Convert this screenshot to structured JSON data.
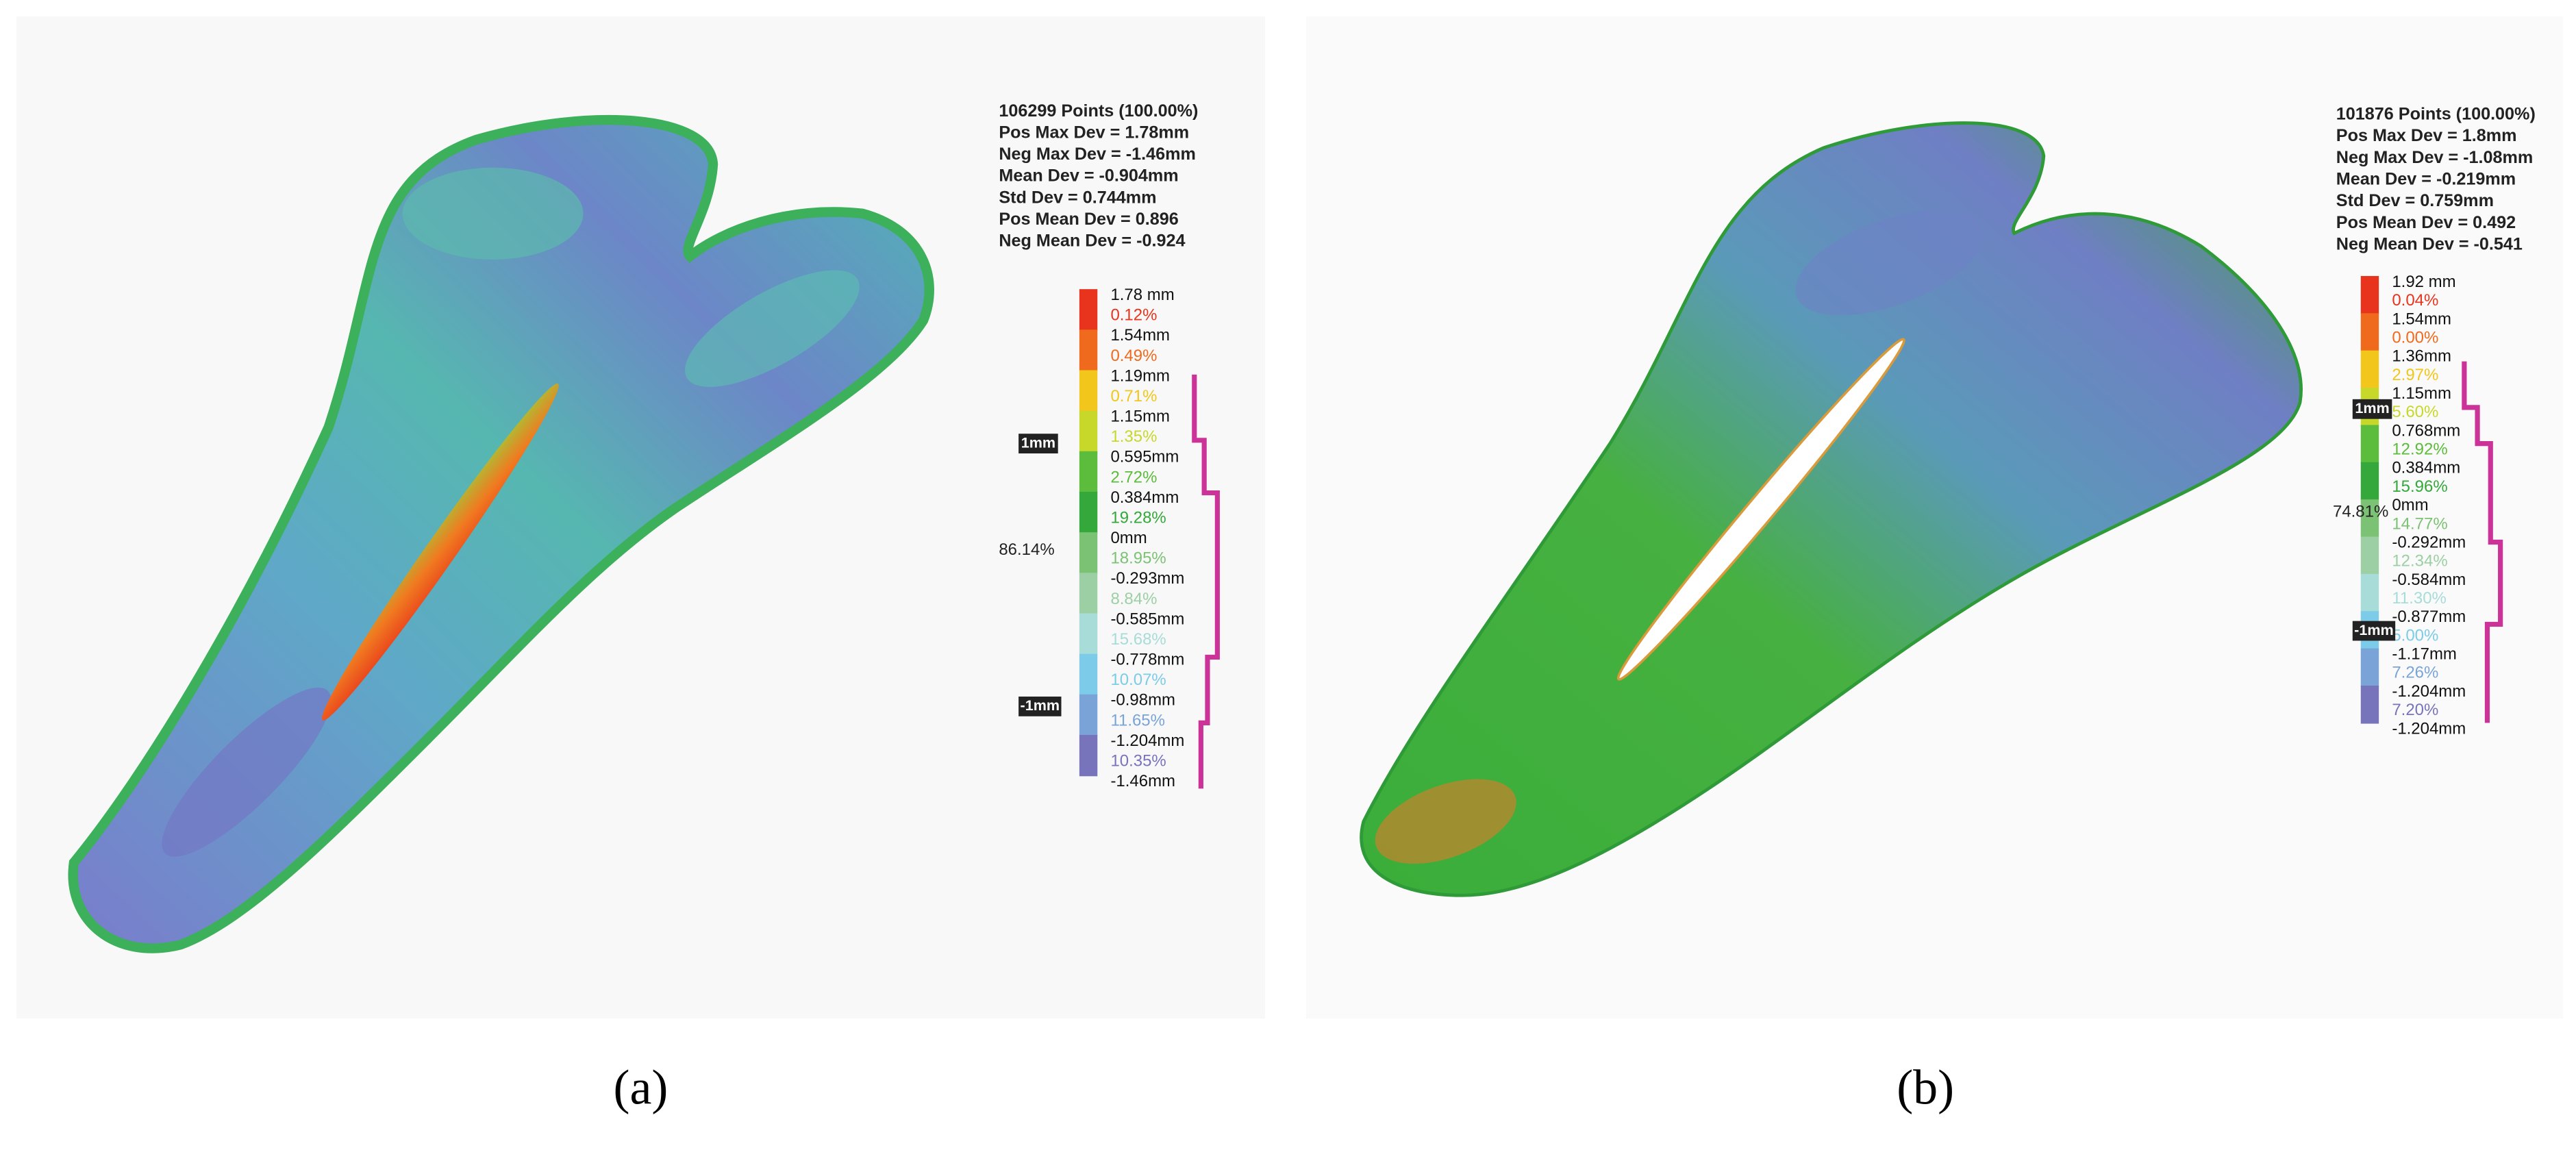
{
  "panels": [
    {
      "stats": [
        "106299 Points (100.00%)",
        "Pos Max Dev = 1.78mm",
        "Neg Max Dev = -1.46mm",
        "Mean Dev = -0.904mm",
        "Std Dev = 0.744mm",
        "Pos Mean Dev = 0.896",
        "Neg Mean Dev = -0.924"
      ],
      "scale": {
        "upper": "1mm",
        "lower": "-1mm"
      },
      "overall": "86.14%",
      "legend": {
        "values": [
          "1.78 mm",
          "1.54mm",
          "1.19mm",
          "1.15mm",
          "0.595mm",
          "0.384mm",
          "0mm",
          "-0.293mm",
          "-0.585mm",
          "-0.778mm",
          "-0.98mm",
          "-1.204mm",
          "-1.46mm"
        ],
        "percents": [
          "0.12%",
          "0.49%",
          "0.71%",
          "1.35%",
          "2.72%",
          "19.28%",
          "18.95%",
          "8.84%",
          "15.68%",
          "10.07%",
          "11.65%",
          "10.35%"
        ],
        "colors": [
          "#e8341c",
          "#f06a1e",
          "#f2c61a",
          "#c8d82a",
          "#5cbc3c",
          "#34a83a",
          "#7cc274",
          "#9ccfa4",
          "#a8dcd8",
          "#7ccbe8",
          "#7aa4d8",
          "#7874bc"
        ]
      },
      "caption": "(a)"
    },
    {
      "stats": [
        "101876 Points (100.00%)",
        "Pos Max Dev = 1.8mm",
        "Neg Max Dev = -1.08mm",
        "Mean Dev = -0.219mm",
        "Std Dev = 0.759mm",
        "Pos Mean Dev = 0.492",
        "Neg Mean Dev = -0.541"
      ],
      "scale": {
        "upper": "1mm",
        "lower": "-1mm"
      },
      "overall": "74.81%",
      "legend": {
        "values": [
          "1.92 mm",
          "1.54mm",
          "1.36mm",
          "1.15mm",
          "0.768mm",
          "0.384mm",
          "0mm",
          "-0.292mm",
          "-0.584mm",
          "-0.877mm",
          "-1.17mm",
          "-1.204mm",
          "-1.204mm"
        ],
        "percents": [
          "0.04%",
          "0.00%",
          "2.97%",
          "5.60%",
          "12.92%",
          "15.96%",
          "14.77%",
          "12.34%",
          "11.30%",
          "5.00%",
          "7.26%",
          "7.20%"
        ],
        "colors": [
          "#e8341c",
          "#f06a1e",
          "#f2c61a",
          "#c8d82a",
          "#5cbc3c",
          "#34a83a",
          "#7cc274",
          "#9ccfa4",
          "#a8dcd8",
          "#7ccbe8",
          "#7aa4d8",
          "#7874bc"
        ]
      },
      "caption": "(b)"
    }
  ]
}
